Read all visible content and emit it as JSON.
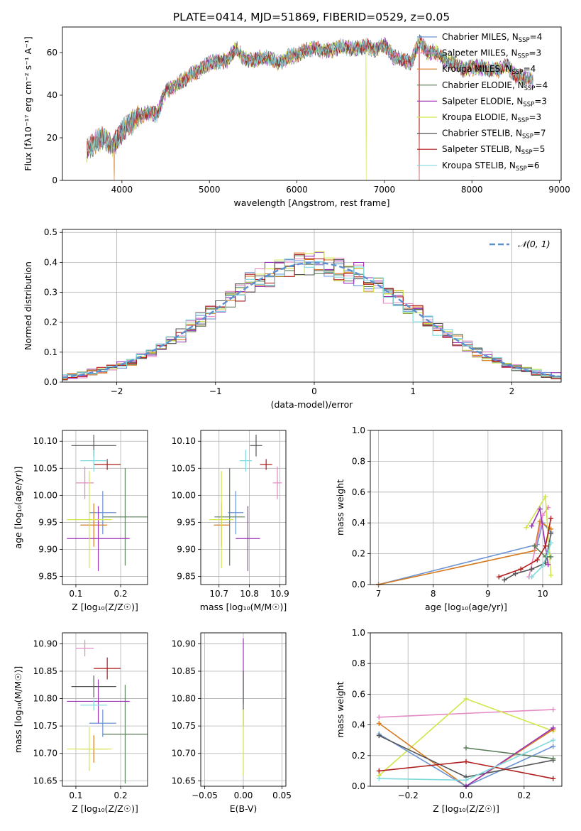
{
  "figure_title": "PLATE=0414, MJD=51869, FIBERID=0529, z=0.05",
  "colors": {
    "Chabrier MILES": "#6a93d4",
    "Salpeter MILES": "#e58ac3",
    "Kroupa MILES": "#d77a1f",
    "Chabrier ELODIE": "#5a7d59",
    "Salpeter ELODIE": "#9b30b8",
    "Kroupa ELODIE": "#d2e64a",
    "Chabrier STELIB": "#555555",
    "Salpeter STELIB": "#b01c1c",
    "Kroupa STELIB": "#7fd8dc"
  },
  "chart_data": [
    {
      "type": "line",
      "name": "spectrum",
      "title": "PLATE=0414, MJD=51869, FIBERID=0529, z=0.05",
      "xlabel": "wavelength [Angstrom, rest frame]",
      "ylabel": "Flux [fλ10⁻¹⁷ erg cm⁻² s⁻¹ A⁻¹]",
      "xlim": [
        3320,
        9020
      ],
      "ylim": [
        0,
        72
      ],
      "xticks": [
        4000,
        5000,
        6000,
        7000,
        8000,
        9000
      ],
      "yticks": [
        0,
        20,
        40,
        60
      ],
      "legend_position": "upper-right",
      "legend": [
        {
          "label": "Chabrier MILES, N",
          "sub": "SSP",
          "tail": "=4"
        },
        {
          "label": "Salpeter MILES, N",
          "sub": "SSP",
          "tail": "=3"
        },
        {
          "label": "Kroupa MILES, N",
          "sub": "SSP",
          "tail": "=4"
        },
        {
          "label": "Chabrier ELODIE, N",
          "sub": "SSP",
          "tail": "=4"
        },
        {
          "label": "Salpeter ELODIE, N",
          "sub": "SSP",
          "tail": "=3"
        },
        {
          "label": "Kroupa ELODIE, N",
          "sub": "SSP",
          "tail": "=3"
        },
        {
          "label": "Chabrier STELIB, N",
          "sub": "SSP",
          "tail": "=7"
        },
        {
          "label": "Salpeter STELIB, N",
          "sub": "SSP",
          "tail": "=5"
        },
        {
          "label": "Kroupa STELIB, N",
          "sub": "SSP",
          "tail": "=6"
        }
      ],
      "series_keys": [
        "Chabrier MILES",
        "Salpeter MILES",
        "Kroupa MILES",
        "Chabrier ELODIE",
        "Salpeter ELODIE",
        "Kroupa ELODIE",
        "Chabrier STELIB",
        "Salpeter STELIB",
        "Kroupa STELIB"
      ],
      "x": [
        3600,
        3700,
        3800,
        3900,
        4000,
        4100,
        4200,
        4300,
        4400,
        4500,
        4600,
        4700,
        4800,
        4900,
        5000,
        5100,
        5200,
        5300,
        5400,
        5500,
        5600,
        5700,
        5800,
        5900,
        6000,
        6100,
        6200,
        6300,
        6400,
        6500,
        6600,
        6700,
        6800,
        6900,
        7000,
        7100,
        7200,
        7300,
        7400,
        7500,
        7600,
        7700,
        7800,
        7900,
        8000,
        8100,
        8200,
        8300,
        8400,
        8500,
        8600,
        8700
      ],
      "y": [
        14,
        18,
        20,
        16,
        23,
        27,
        30,
        32,
        31,
        42,
        44,
        47,
        50,
        52,
        55,
        56,
        56,
        62,
        57,
        56,
        58,
        57,
        55,
        58,
        59,
        61,
        62,
        61,
        61,
        63,
        62,
        62,
        63,
        61,
        64,
        58,
        57,
        55,
        65,
        60,
        60,
        56,
        55,
        52,
        53,
        53,
        52,
        52,
        54,
        49,
        48,
        47
      ],
      "dropouts": [
        {
          "x": 3910,
          "series": "Kroupa MILES"
        },
        {
          "x": 6790,
          "series": "Kroupa ELODIE"
        },
        {
          "x": 7400,
          "series": "Salpeter STELIB"
        }
      ]
    },
    {
      "type": "line",
      "name": "residual-histogram",
      "xlabel": "(data-model)/error",
      "ylabel": "Normed distribution",
      "xlim": [
        -2.55,
        2.5
      ],
      "ylim": [
        0,
        0.51
      ],
      "xticks": [
        -2,
        -1,
        0,
        1,
        2
      ],
      "xtick_labels": [
        "−2",
        "−1",
        "0",
        "1",
        "2"
      ],
      "yticks": [
        0,
        0.1,
        0.2,
        0.3,
        0.4,
        0.5
      ],
      "ytick_labels": [
        "0.0",
        "0.1",
        "0.2",
        "0.3",
        "0.4",
        "0.5"
      ],
      "grid": true,
      "legend_position": "upper-right",
      "legend": [
        {
          "label": "𝒩(0, 1)",
          "style": "dashed",
          "color": "#5a8fd0"
        }
      ],
      "bin_width": 0.1
    },
    {
      "type": "scatter",
      "name": "age-vs-Z",
      "xlabel": "Z [log₁₀(Z/Z☉)]",
      "ylabel": "age [log₁₀(age/yr)]",
      "xlim": [
        0.07,
        0.26
      ],
      "ylim": [
        9.835,
        10.12
      ],
      "xticks": [
        0.1,
        0.2
      ],
      "yticks": [
        9.85,
        9.9,
        9.95,
        10.0,
        10.05,
        10.1
      ],
      "points": [
        {
          "series": "Chabrier MILES",
          "x": 0.16,
          "y": 9.968,
          "xerr": 0.03,
          "yerr": 0.04
        },
        {
          "series": "Salpeter MILES",
          "x": 0.12,
          "y": 10.023,
          "xerr": 0.02,
          "yerr": 0.03
        },
        {
          "series": "Kroupa MILES",
          "x": 0.14,
          "y": 9.945,
          "xerr": 0.03,
          "yerr": 0.04
        },
        {
          "series": "Chabrier ELODIE",
          "x": 0.21,
          "y": 9.96,
          "xerr": 0.05,
          "yerr": 0.09
        },
        {
          "series": "Salpeter ELODIE",
          "x": 0.15,
          "y": 9.92,
          "xerr": 0.07,
          "yerr": 0.06
        },
        {
          "series": "Kroupa ELODIE",
          "x": 0.13,
          "y": 9.955,
          "xerr": 0.05,
          "yerr": 0.09
        },
        {
          "series": "Chabrier STELIB",
          "x": 0.14,
          "y": 10.092,
          "xerr": 0.05,
          "yerr": 0.02
        },
        {
          "series": "Salpeter STELIB",
          "x": 0.17,
          "y": 10.057,
          "xerr": 0.03,
          "yerr": 0.01
        },
        {
          "series": "Kroupa STELIB",
          "x": 0.14,
          "y": 10.064,
          "xerr": 0.03,
          "yerr": 0.02
        }
      ]
    },
    {
      "type": "scatter",
      "name": "age-vs-mass",
      "xlabel": "mass [log₁₀(M/M☉)]",
      "xlim": [
        10.64,
        10.92
      ],
      "ylim": [
        9.835,
        10.12
      ],
      "xticks": [
        10.7,
        10.8,
        10.9
      ],
      "yticks": [
        9.85,
        9.9,
        9.95,
        10.0,
        10.05,
        10.1
      ],
      "points": [
        {
          "series": "Chabrier MILES",
          "x": 10.755,
          "y": 9.968,
          "xerr": 0.025,
          "yerr": 0.04
        },
        {
          "series": "Salpeter MILES",
          "x": 10.892,
          "y": 10.023,
          "xerr": 0.015,
          "yerr": 0.03
        },
        {
          "series": "Kroupa MILES",
          "x": 10.708,
          "y": 9.945,
          "xerr": 0.025,
          "yerr": 0.04
        },
        {
          "series": "Chabrier ELODIE",
          "x": 10.735,
          "y": 9.96,
          "xerr": 0.05,
          "yerr": 0.09
        },
        {
          "series": "Salpeter ELODIE",
          "x": 10.795,
          "y": 9.92,
          "xerr": 0.04,
          "yerr": 0.06
        },
        {
          "series": "Kroupa ELODIE",
          "x": 10.708,
          "y": 9.955,
          "xerr": 0.04,
          "yerr": 0.09
        },
        {
          "series": "Chabrier STELIB",
          "x": 10.822,
          "y": 10.092,
          "xerr": 0.02,
          "yerr": 0.02
        },
        {
          "series": "Salpeter STELIB",
          "x": 10.855,
          "y": 10.057,
          "xerr": 0.02,
          "yerr": 0.01
        },
        {
          "series": "Kroupa STELIB",
          "x": 10.788,
          "y": 10.064,
          "xerr": 0.02,
          "yerr": 0.02
        }
      ]
    },
    {
      "type": "line",
      "name": "mass-weight-vs-age",
      "xlabel": "age [log₁₀(age/yr)]",
      "ylabel": "mass weight",
      "xlim": [
        6.85,
        10.35
      ],
      "ylim": [
        0,
        1.0
      ],
      "xticks": [
        7,
        8,
        9,
        10
      ],
      "yticks": [
        0,
        0.2,
        0.4,
        0.6,
        0.8,
        1.0
      ],
      "grid": true,
      "series": [
        {
          "key": "Chabrier MILES",
          "x": [
            7.0,
            9.9,
            10.0,
            10.15
          ],
          "y": [
            0.0,
            0.26,
            0.4,
            0.34
          ]
        },
        {
          "key": "Kroupa MILES",
          "x": [
            7.0,
            9.85,
            9.95,
            10.15
          ],
          "y": [
            0.0,
            0.22,
            0.41,
            0.36
          ]
        },
        {
          "key": "Salpeter MILES",
          "x": [
            9.75,
            10.0,
            10.1
          ],
          "y": [
            0.05,
            0.45,
            0.5
          ]
        },
        {
          "key": "Kroupa ELODIE",
          "x": [
            9.7,
            10.05,
            10.15
          ],
          "y": [
            0.37,
            0.57,
            0.06
          ]
        },
        {
          "key": "Salpeter ELODIE",
          "x": [
            9.8,
            9.95,
            10.1
          ],
          "y": [
            0.38,
            0.49,
            0.13
          ]
        },
        {
          "key": "Chabrier ELODIE",
          "x": [
            9.85,
            10.05,
            10.15
          ],
          "y": [
            0.25,
            0.18,
            0.18
          ]
        },
        {
          "key": "Chabrier STELIB",
          "x": [
            9.3,
            9.5,
            9.8,
            10.05,
            10.15
          ],
          "y": [
            0.03,
            0.07,
            0.1,
            0.14,
            0.33
          ]
        },
        {
          "key": "Salpeter STELIB",
          "x": [
            9.2,
            9.6,
            9.9,
            10.05,
            10.15
          ],
          "y": [
            0.05,
            0.1,
            0.16,
            0.25,
            0.43
          ]
        },
        {
          "key": "Kroupa STELIB",
          "x": [
            9.8,
            10.0,
            10.1,
            10.15
          ],
          "y": [
            0.05,
            0.12,
            0.21,
            0.27
          ]
        }
      ]
    },
    {
      "type": "scatter",
      "name": "mass-vs-Z",
      "xlabel": "Z [log₁₀(Z/Z☉)]",
      "ylabel": "mass [log₁₀(M/M☉)]",
      "xlim": [
        0.07,
        0.26
      ],
      "ylim": [
        10.64,
        10.92
      ],
      "xticks": [
        0.1,
        0.2
      ],
      "yticks": [
        10.65,
        10.7,
        10.75,
        10.8,
        10.85,
        10.9
      ],
      "points": [
        {
          "series": "Chabrier MILES",
          "x": 0.16,
          "y": 10.755,
          "xerr": 0.03,
          "yerr": 0.025
        },
        {
          "series": "Salpeter MILES",
          "x": 0.12,
          "y": 10.892,
          "xerr": 0.02,
          "yerr": 0.015
        },
        {
          "series": "Kroupa MILES",
          "x": 0.14,
          "y": 10.708,
          "xerr": 0.03,
          "yerr": 0.025
        },
        {
          "series": "Chabrier ELODIE",
          "x": 0.21,
          "y": 10.735,
          "xerr": 0.05,
          "yerr": 0.09
        },
        {
          "series": "Salpeter ELODIE",
          "x": 0.15,
          "y": 10.795,
          "xerr": 0.07,
          "yerr": 0.04
        },
        {
          "series": "Kroupa ELODIE",
          "x": 0.13,
          "y": 10.708,
          "xerr": 0.05,
          "yerr": 0.04
        },
        {
          "series": "Chabrier STELIB",
          "x": 0.14,
          "y": 10.822,
          "xerr": 0.05,
          "yerr": 0.02
        },
        {
          "series": "Salpeter STELIB",
          "x": 0.17,
          "y": 10.855,
          "xerr": 0.03,
          "yerr": 0.02
        },
        {
          "series": "Kroupa STELIB",
          "x": 0.14,
          "y": 10.788,
          "xerr": 0.03,
          "yerr": 0.01
        }
      ]
    },
    {
      "type": "scatter",
      "name": "mass-vs-EBV",
      "xlabel": "E(B-V)",
      "xlim": [
        -0.055,
        0.055
      ],
      "ylim": [
        10.64,
        10.92
      ],
      "xticks": [
        -0.05,
        0.0,
        0.05
      ],
      "xtick_labels": [
        "−0.05",
        "0.00",
        "0.05"
      ],
      "yticks": [
        10.65,
        10.7,
        10.75,
        10.8,
        10.85,
        10.9
      ],
      "points": [
        {
          "series": "Salpeter ELODIE",
          "x": 0.0,
          "y": 10.85,
          "yerr": 0.06
        },
        {
          "series": "Chabrier STELIB",
          "x": 0.0,
          "y": 10.8,
          "yerr": 0.05
        },
        {
          "series": "Kroupa ELODIE",
          "x": 0.0,
          "y": 10.72,
          "yerr": 0.06
        }
      ]
    },
    {
      "type": "line",
      "name": "mass-weight-vs-Z",
      "xlabel": "Z [log₁₀(Z/Z☉)]",
      "ylabel": "mass weight",
      "xlim": [
        -0.33,
        0.33
      ],
      "ylim": [
        0,
        1.0
      ],
      "xticks": [
        -0.2,
        0.0,
        0.2
      ],
      "xtick_labels": [
        "−0.2",
        "0.0",
        "0.2"
      ],
      "yticks": [
        0,
        0.2,
        0.4,
        0.6,
        0.8,
        1.0
      ],
      "grid": true,
      "series": [
        {
          "key": "Salpeter MILES",
          "x": [
            -0.3,
            0.3
          ],
          "y": [
            0.45,
            0.5
          ]
        },
        {
          "key": "Kroupa ELODIE",
          "x": [
            -0.3,
            0.0,
            0.3
          ],
          "y": [
            0.07,
            0.57,
            0.36
          ]
        },
        {
          "key": "Kroupa MILES",
          "x": [
            -0.3,
            0.0,
            0.3
          ],
          "y": [
            0.41,
            0.0,
            0.37
          ]
        },
        {
          "key": "Chabrier MILES",
          "x": [
            -0.3,
            0.0,
            0.3
          ],
          "y": [
            0.34,
            0.0,
            0.26
          ]
        },
        {
          "key": "Chabrier STELIB",
          "x": [
            -0.3,
            0.0,
            0.3
          ],
          "y": [
            0.33,
            0.06,
            0.17
          ]
        },
        {
          "key": "Salpeter ELODIE",
          "x": [
            0.0,
            0.3
          ],
          "y": [
            0.0,
            0.38
          ]
        },
        {
          "key": "Salpeter STELIB",
          "x": [
            -0.3,
            0.0,
            0.3
          ],
          "y": [
            0.1,
            0.16,
            0.05
          ]
        },
        {
          "key": "Chabrier ELODIE",
          "x": [
            0.0,
            0.3
          ],
          "y": [
            0.25,
            0.18
          ]
        },
        {
          "key": "Kroupa STELIB",
          "x": [
            -0.3,
            0.0,
            0.3
          ],
          "y": [
            0.05,
            0.04,
            0.3
          ]
        }
      ]
    }
  ]
}
